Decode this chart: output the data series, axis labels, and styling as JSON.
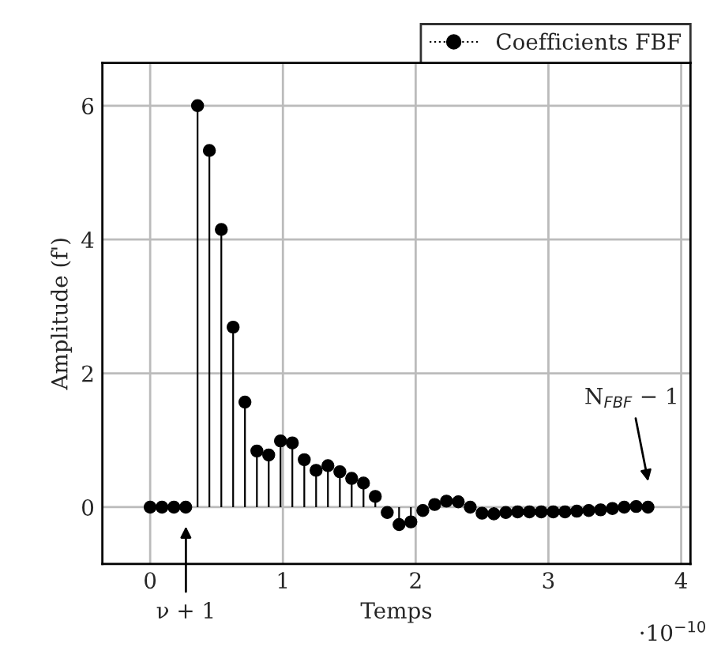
{
  "chart_data": {
    "type": "lollipop",
    "xlabel": "Temps",
    "ylabel": "Amplitude (f')",
    "x": [
      0,
      0.089,
      0.179,
      0.268,
      0.357,
      0.446,
      0.536,
      0.625,
      0.714,
      0.804,
      0.893,
      0.982,
      1.071,
      1.161,
      1.25,
      1.339,
      1.429,
      1.518,
      1.607,
      1.696,
      1.786,
      1.875,
      1.964,
      2.054,
      2.143,
      2.232,
      2.321,
      2.411,
      2.5,
      2.589,
      2.679,
      2.768,
      2.857,
      2.946,
      3.036,
      3.125,
      3.214,
      3.304,
      3.393,
      3.482,
      3.571,
      3.661,
      3.75
    ],
    "series": [
      {
        "name": "Coefficients FBF",
        "color": "#000000",
        "values": [
          0,
          0,
          0,
          0,
          6.0,
          5.33,
          4.15,
          2.69,
          1.57,
          0.84,
          0.78,
          0.99,
          0.96,
          0.71,
          0.55,
          0.62,
          0.53,
          0.43,
          0.36,
          0.16,
          -0.08,
          -0.26,
          -0.22,
          -0.05,
          0.04,
          0.09,
          0.08,
          0,
          -0.09,
          -0.1,
          -0.08,
          -0.07,
          -0.07,
          -0.07,
          -0.07,
          -0.07,
          -0.06,
          -0.05,
          -0.04,
          -0.02,
          0.0,
          0.01,
          0.0
        ]
      }
    ],
    "xlim": [
      -0.36,
      4.07
    ],
    "ylim": [
      -0.85,
      6.64
    ],
    "xticks": [
      0,
      1,
      2,
      3,
      4
    ],
    "yticks": [
      0,
      2,
      4,
      6
    ],
    "grid": true,
    "legend": "top right",
    "marker": "circle",
    "annotations": [
      "ν + 1",
      "N$_{FBF}$ − 1",
      "·10$^{−10}$"
    ]
  }
}
